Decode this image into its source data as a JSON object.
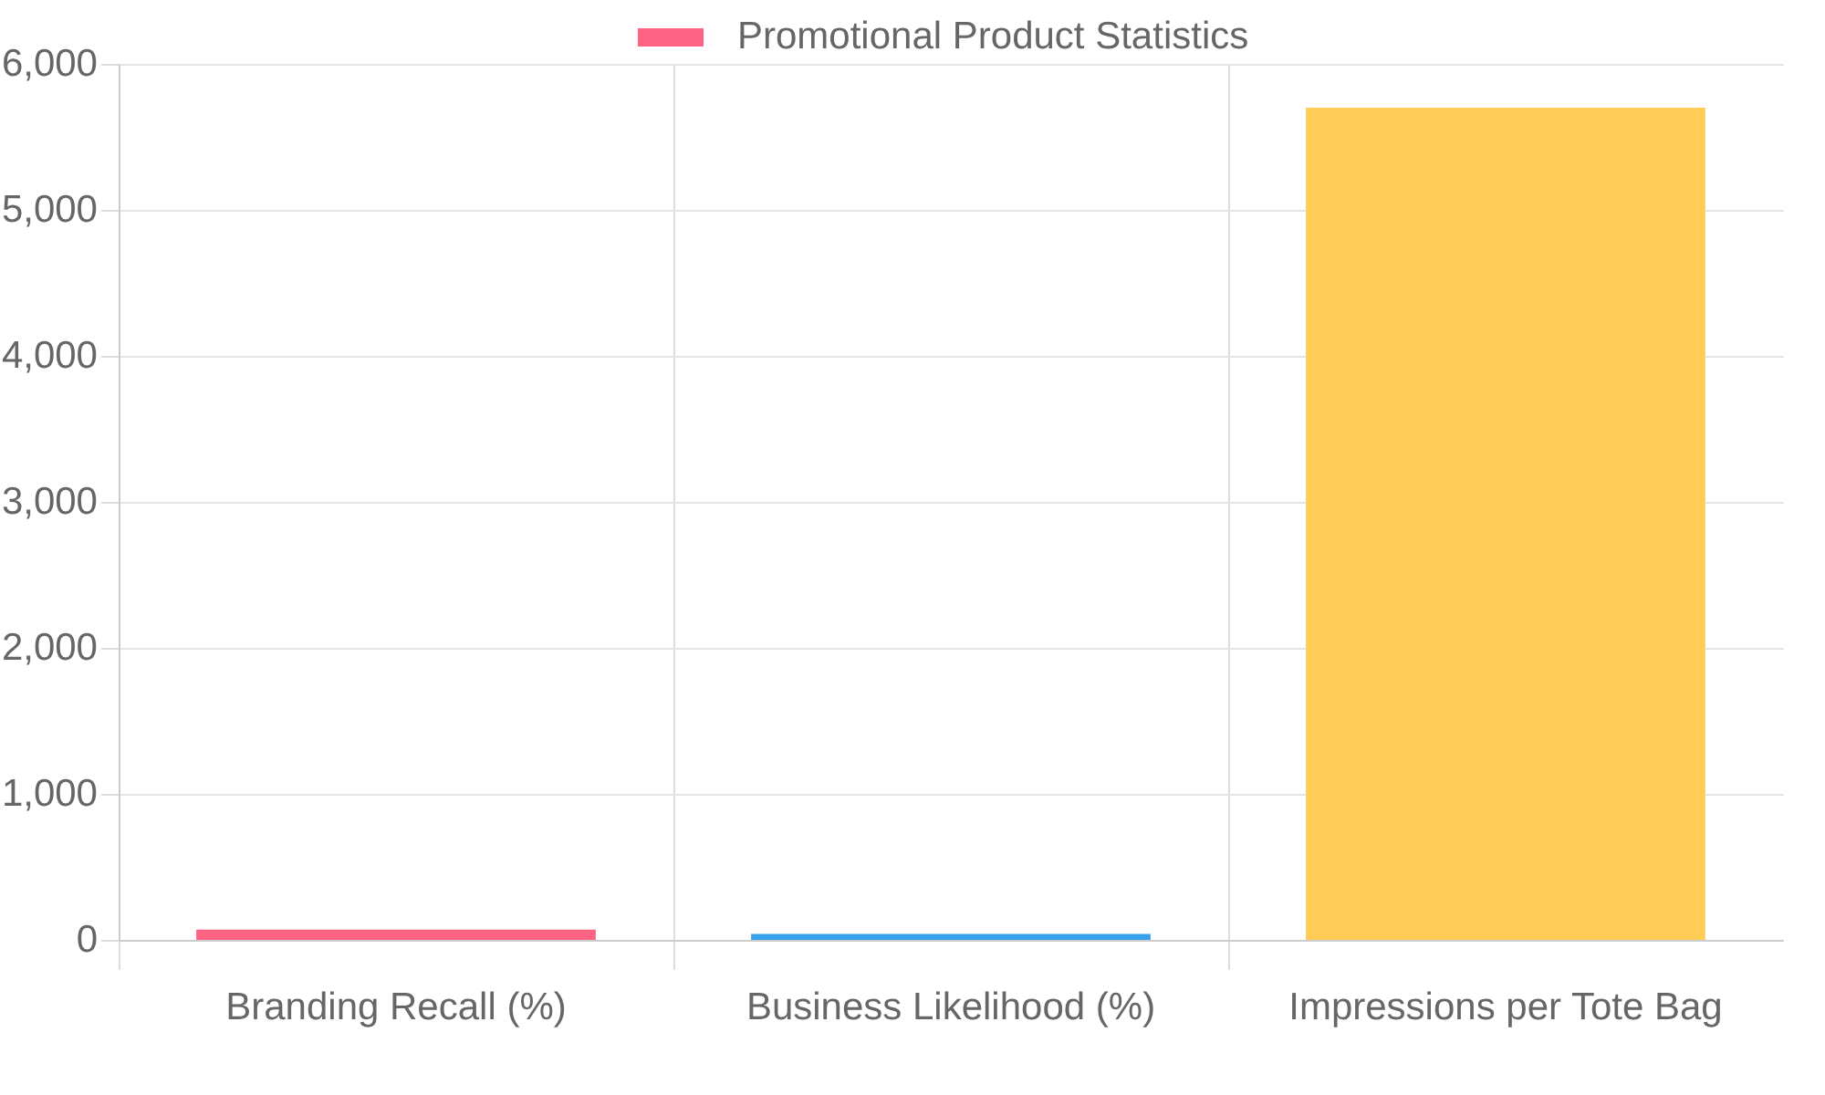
{
  "chart_data": {
    "type": "bar",
    "categories": [
      "Branding Recall (%)",
      "Business Likelihood (%)",
      "Impressions per Tote Bag"
    ],
    "series": [
      {
        "name": "Promotional Product Statistics",
        "colors": [
          "#ff6384",
          "#36a2eb",
          "#ffcd56"
        ],
        "values": [
          70,
          40,
          5700
        ]
      }
    ],
    "ylim": [
      0,
      6000
    ],
    "yticks": [
      {
        "value": 0,
        "label": "0"
      },
      {
        "value": 1000,
        "label": "1,000"
      },
      {
        "value": 2000,
        "label": "2,000"
      },
      {
        "value": 3000,
        "label": "3,000"
      },
      {
        "value": 4000,
        "label": "4,000"
      },
      {
        "value": 5000,
        "label": "5,000"
      },
      {
        "value": 6000,
        "label": "6,000"
      }
    ],
    "grid": true,
    "legend": "top"
  }
}
